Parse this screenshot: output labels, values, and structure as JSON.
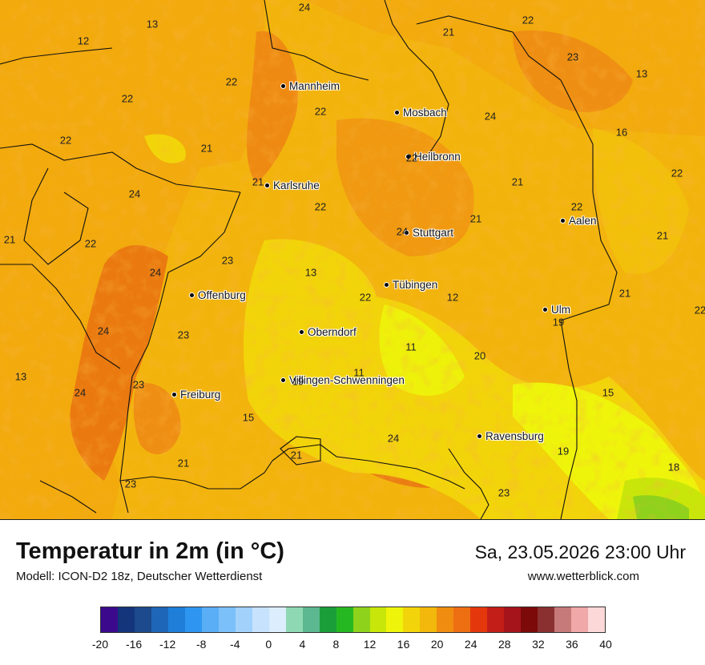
{
  "map": {
    "cities": [
      {
        "name": "Mannheim",
        "id": "mannheim"
      },
      {
        "name": "Mosbach",
        "id": "mosbach"
      },
      {
        "name": "Heilbronn",
        "id": "heilbronn"
      },
      {
        "name": "Karlsruhe",
        "id": "karlsruhe"
      },
      {
        "name": "Stuttgart",
        "id": "stuttgart"
      },
      {
        "name": "Aalen",
        "id": "aalen"
      },
      {
        "name": "Tübingen",
        "id": "tuebingen"
      },
      {
        "name": "Offenburg",
        "id": "offenburg"
      },
      {
        "name": "Ulm",
        "id": "ulm"
      },
      {
        "name": "Oberndorf",
        "id": "oberndorf"
      },
      {
        "name": "Villingen-Schwenningen",
        "id": "villingen"
      },
      {
        "name": "Freiburg",
        "id": "freiburg"
      },
      {
        "name": "Ravensburg",
        "id": "ravensburg"
      }
    ],
    "values": [
      "24",
      "13",
      "12",
      "21",
      "22",
      "22",
      "22",
      "23",
      "13",
      "22",
      "24",
      "22",
      "16",
      "21",
      "22",
      "21",
      "24",
      "22",
      "22",
      "21",
      "22",
      "21",
      "21",
      "24",
      "23",
      "13",
      "22",
      "12",
      "24",
      "21",
      "19",
      "23",
      "20",
      "11",
      "24",
      "22",
      "13",
      "24",
      "11",
      "19",
      "23",
      "15",
      "15",
      "24",
      "21",
      "19",
      "18",
      "23",
      "21",
      "23",
      "21",
      "22"
    ]
  },
  "footer": {
    "title": "Temperatur in 2m (in °C)",
    "model": "Modell: ICON-D2 18z, Deutscher Wetterdienst",
    "datetime": "Sa, 23.05.2026 23:00 Uhr",
    "website": "www.wetterblick.com"
  },
  "legend": {
    "colors": [
      "#3b0a8c",
      "#14357a",
      "#1c4a8c",
      "#1e66b8",
      "#1e7ed8",
      "#2e96f0",
      "#5aaef6",
      "#7cc0fa",
      "#a2d2fc",
      "#c6e2fc",
      "#dcedfd",
      "#8fd8b4",
      "#5cb890",
      "#1a9e3a",
      "#26b820",
      "#8ed21c",
      "#c8e60a",
      "#eef50a",
      "#f2d40a",
      "#f2b80c",
      "#f08c10",
      "#ee6e12",
      "#e4380c",
      "#c41e18",
      "#a4141a",
      "#7c0a08",
      "#8a3030",
      "#c67a7a",
      "#f0a8a8",
      "#fcd8d8"
    ],
    "ticks": [
      "-20",
      "-16",
      "-12",
      "-8",
      "-4",
      "0",
      "4",
      "8",
      "12",
      "16",
      "20",
      "24",
      "28",
      "32",
      "36",
      "40"
    ]
  }
}
